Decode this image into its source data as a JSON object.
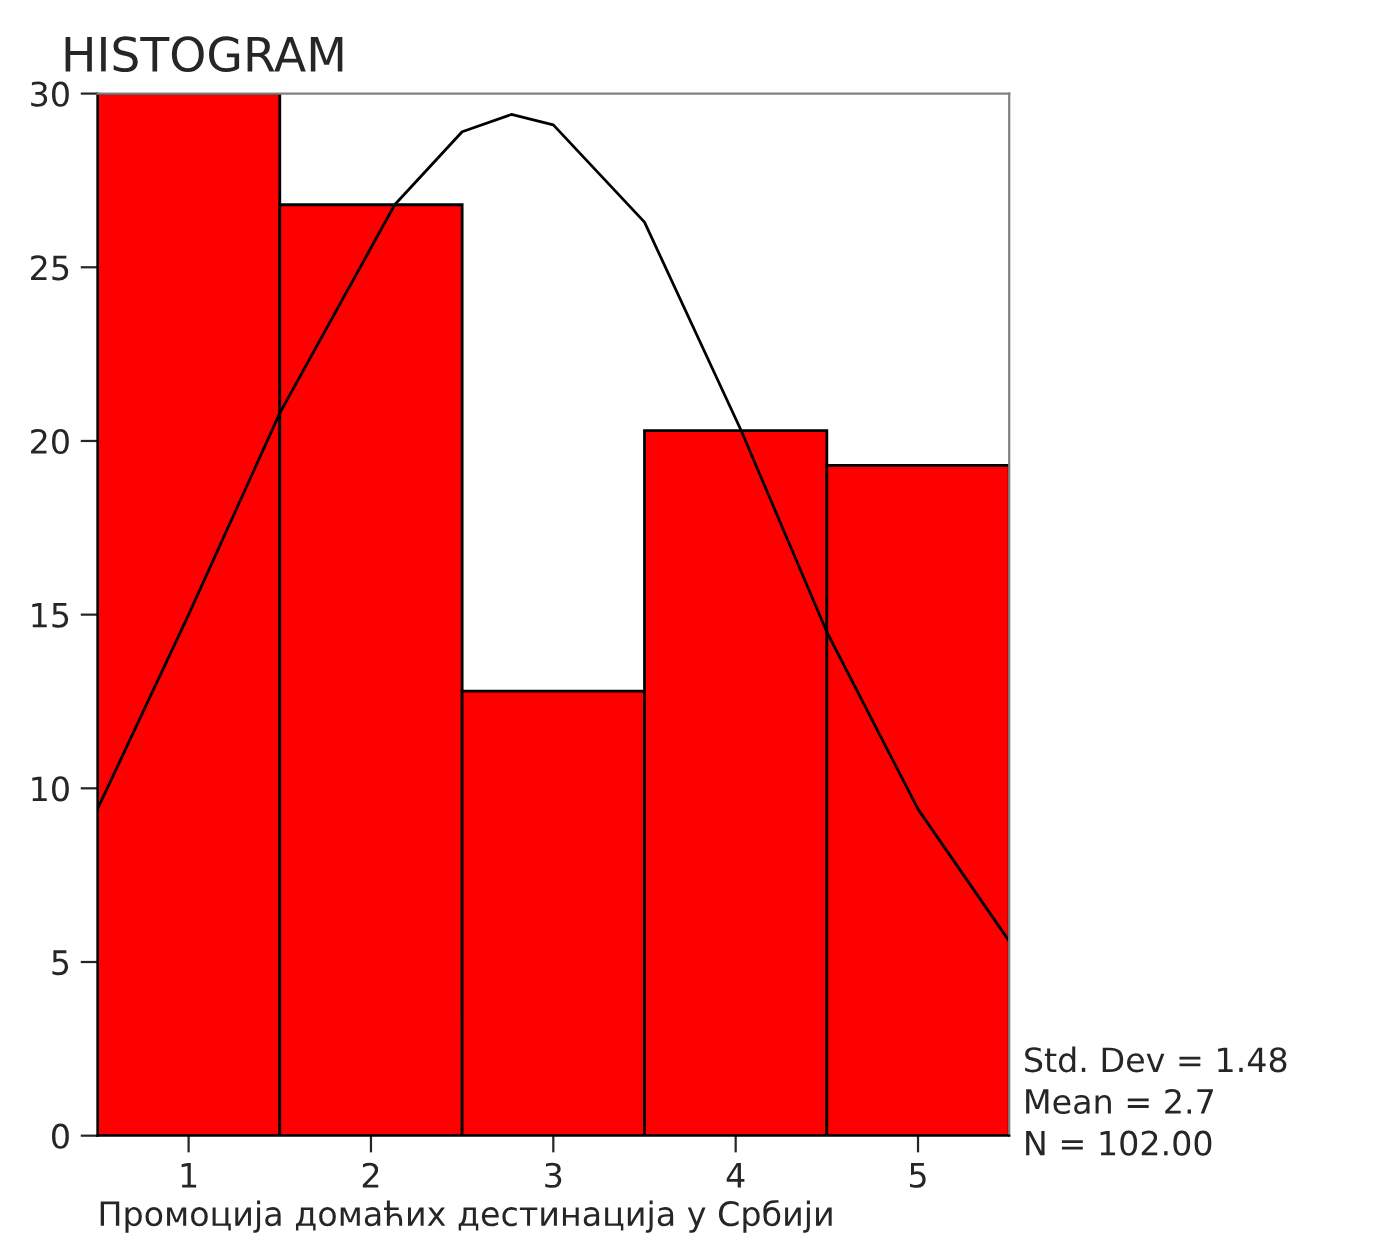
{
  "chart_data": {
    "type": "histogram",
    "title": "HISTOGRAM",
    "xlabel": "Промоција домаћих дестинација у Србији",
    "bins": [
      0.5,
      1.5,
      2.5,
      3.5,
      4.5,
      5.5
    ],
    "values": [
      30,
      26.8,
      12.8,
      20.3,
      19.3
    ],
    "color": "#ff0000",
    "series": [
      {
        "type": "line",
        "color": "#000000",
        "x": [
          0.5,
          1.0,
          1.5,
          2.13,
          2.5,
          2.77,
          3.0,
          3.5,
          4.03,
          4.5,
          5.0,
          5.5
        ],
        "values": [
          9.4,
          15.0,
          20.8,
          26.8,
          28.9,
          29.4,
          29.1,
          26.3,
          20.3,
          14.5,
          9.4,
          5.6
        ]
      }
    ],
    "xlim": [
      0.5,
      5.5
    ],
    "xticks": [
      1,
      2,
      3,
      4,
      5
    ],
    "ylim": [
      0,
      30
    ],
    "yticks": [
      0,
      5,
      10,
      15,
      20,
      25,
      30
    ],
    "grid": false,
    "legend": false,
    "annotations": [
      "Std. Dev = 1.48",
      "Mean = 2.7",
      "N = 102.00"
    ]
  }
}
